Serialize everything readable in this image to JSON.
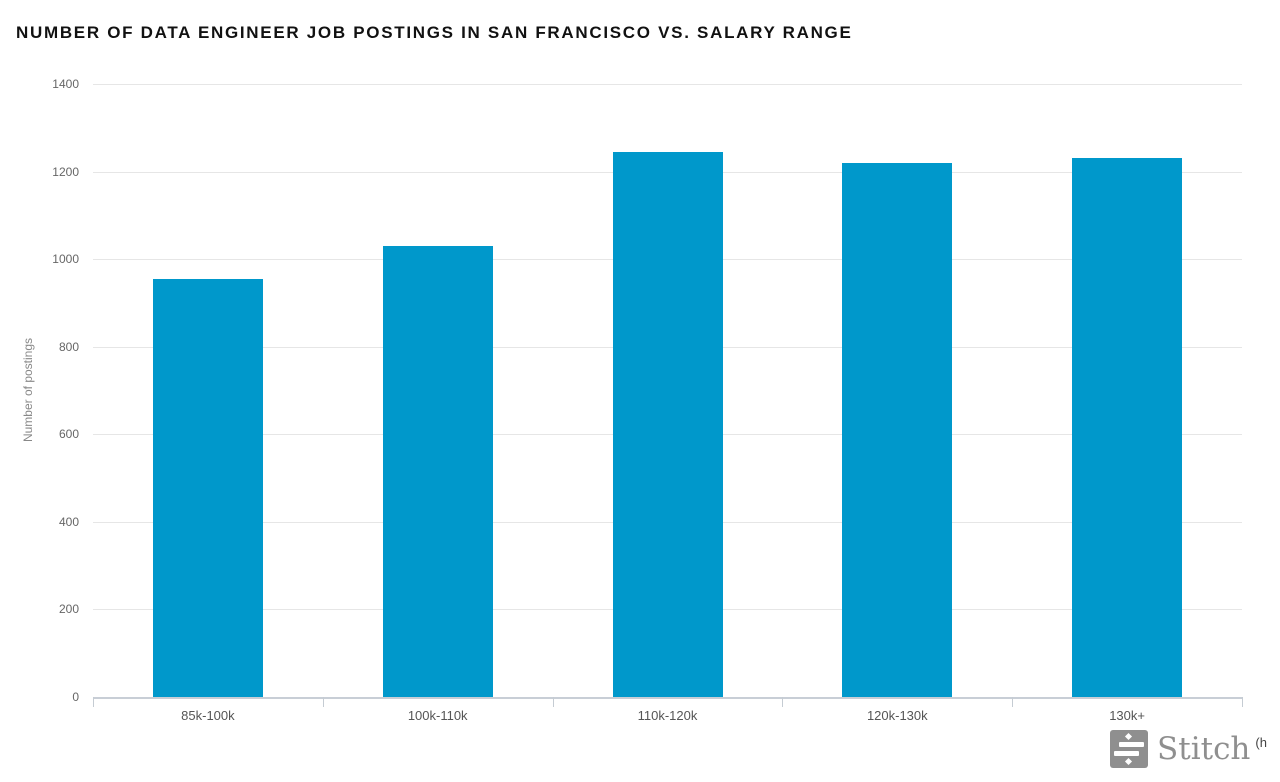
{
  "chart_data": {
    "type": "bar",
    "title": "NUMBER OF DATA ENGINEER JOB POSTINGS IN SAN FRANCISCO VS. SALARY RANGE",
    "categories": [
      "85k-100k",
      "100k-110k",
      "110k-120k",
      "120k-130k",
      "130k+"
    ],
    "values": [
      955,
      1030,
      1245,
      1220,
      1230
    ],
    "xlabel": "",
    "ylabel": "Number of postings",
    "ylim": [
      0,
      1400
    ],
    "yticks": [
      0,
      200,
      400,
      600,
      800,
      1000,
      1200,
      1400
    ],
    "grid": "horizontal-only",
    "legend": "none",
    "bar_color": "#0098cb"
  },
  "colors": {
    "bar": "#0098cb",
    "gridline": "#e6e6e6",
    "axis_line": "#c8ced6",
    "axis_tick": "#c5ccd3",
    "y_tick_text": "#666666",
    "x_tick_text": "#555555",
    "title_text": "#111111",
    "brand_gray": "#8f8f8f"
  },
  "branding": {
    "wordmark": "Stitch",
    "truncated_credit": "(h"
  }
}
